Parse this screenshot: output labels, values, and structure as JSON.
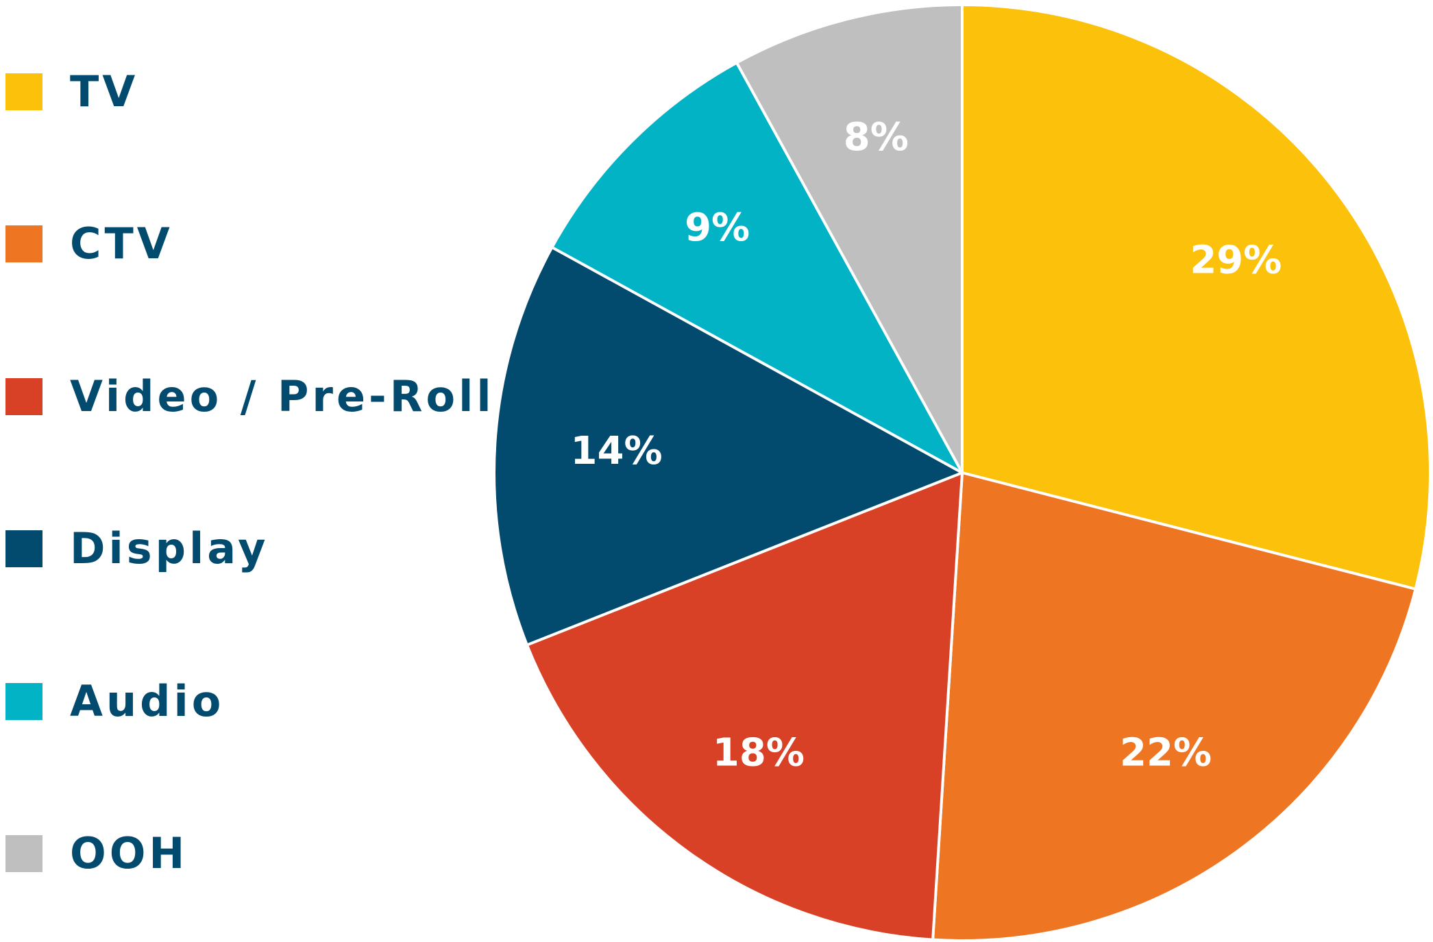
{
  "chart_data": {
    "type": "pie",
    "categories": [
      "TV",
      "CTV",
      "Video / Pre-Roll",
      "Display",
      "Audio",
      "OOH"
    ],
    "values": [
      29,
      22,
      18,
      14,
      9,
      8
    ],
    "value_labels": [
      "29%",
      "22%",
      "18%",
      "14%",
      "9%",
      "8%"
    ],
    "colors": [
      "#fcc10b",
      "#ee7623",
      "#d84126",
      "#034b6e",
      "#02b3c5",
      "#bfbfbf"
    ],
    "title": "",
    "legend_placement": "left",
    "start_angle": "12 o'clock",
    "direction": "clockwise"
  },
  "legend": {
    "text_color": "#034b6e",
    "items": [
      {
        "label": "TV",
        "color": "#fcc10b"
      },
      {
        "label": "CTV",
        "color": "#ee7623"
      },
      {
        "label": "Video / Pre-Roll",
        "color": "#d84126"
      },
      {
        "label": "Display",
        "color": "#034b6e"
      },
      {
        "label": "Audio",
        "color": "#02b3c5"
      },
      {
        "label": "OOH",
        "color": "#bfbfbf"
      }
    ]
  }
}
